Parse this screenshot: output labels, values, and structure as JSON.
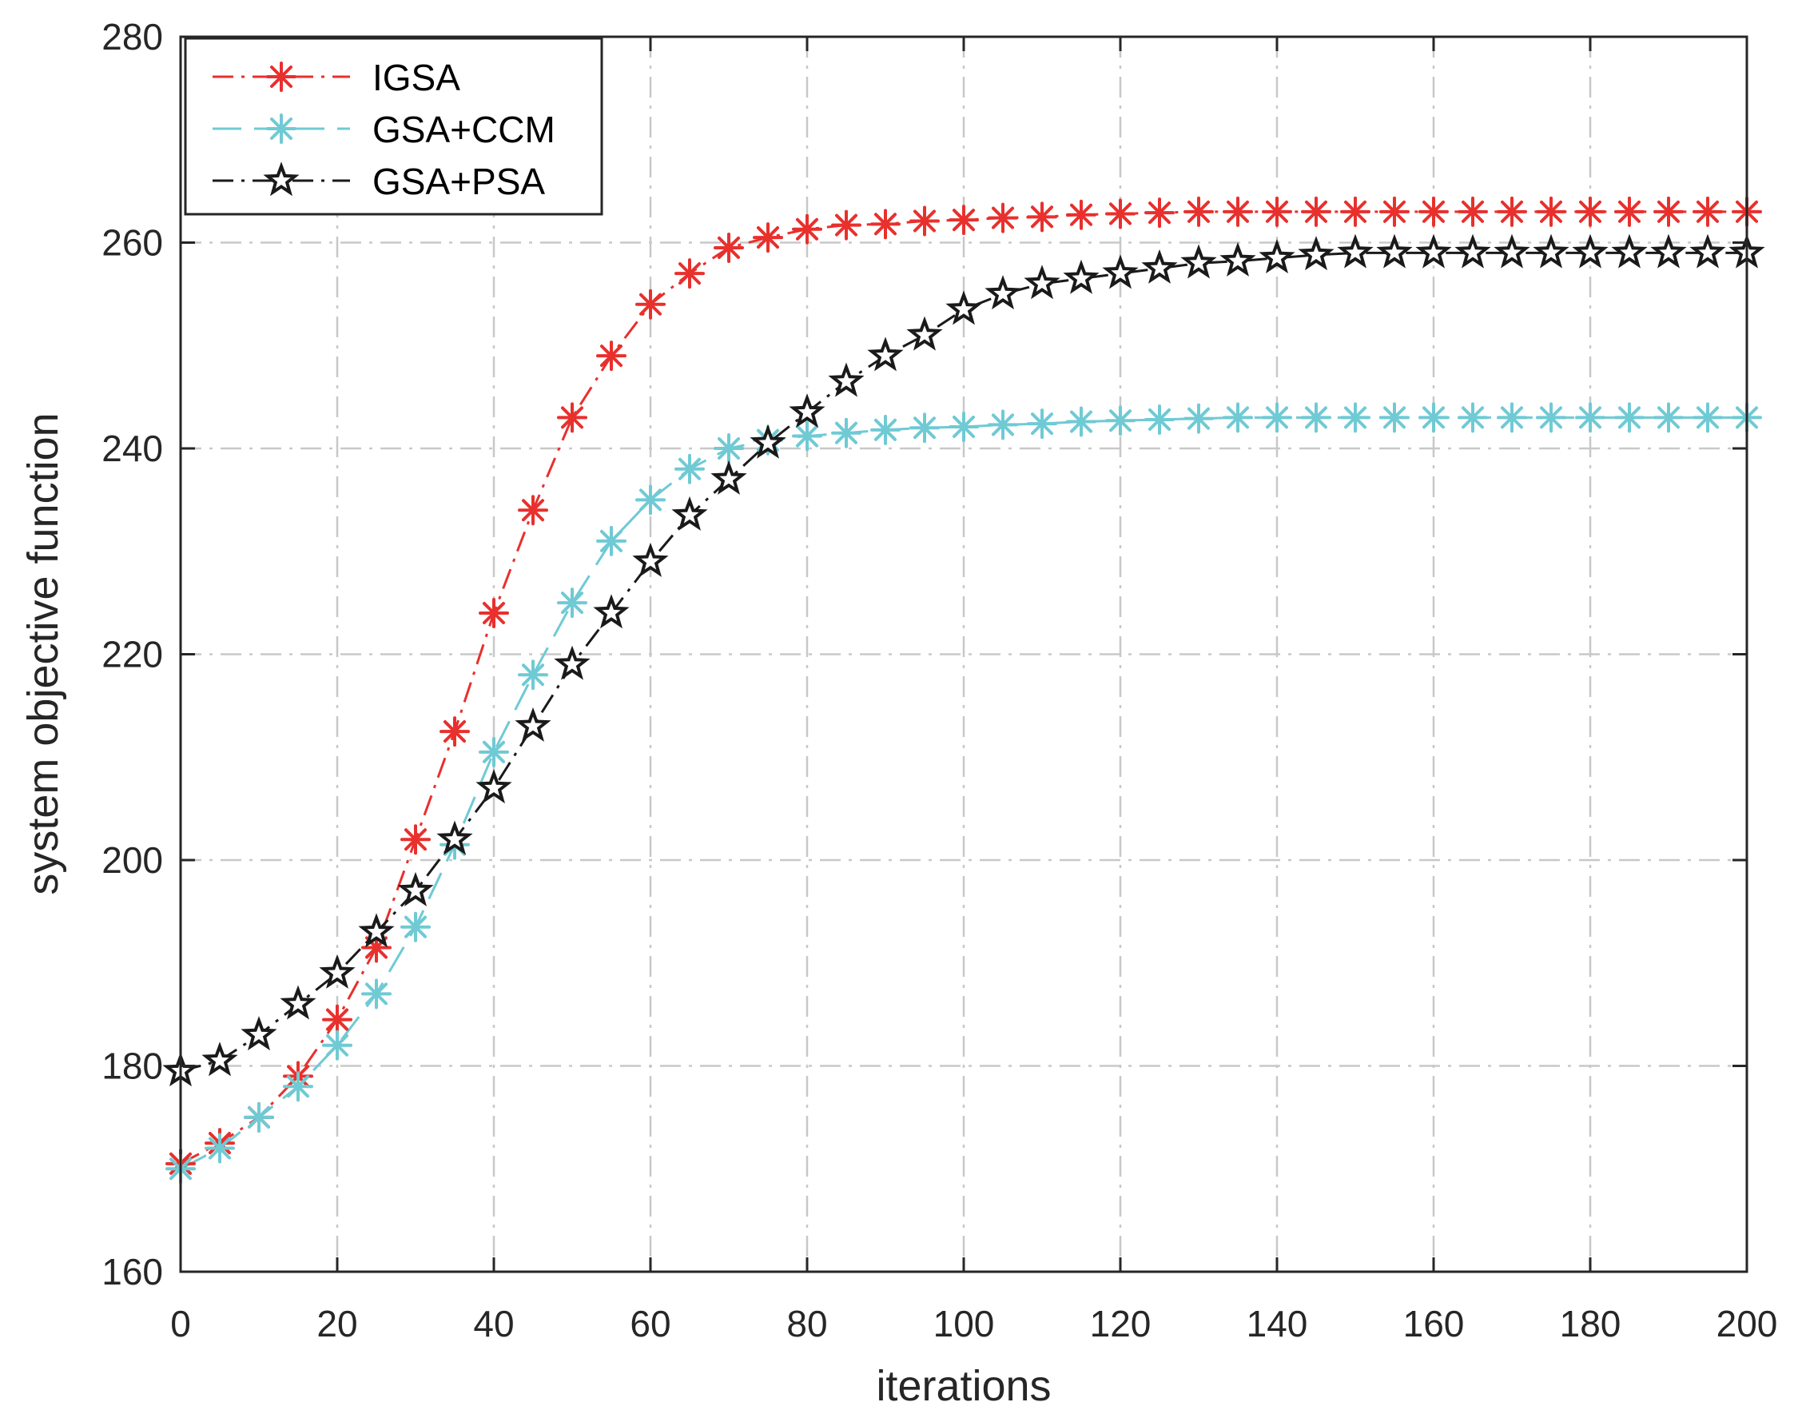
{
  "chart_data": {
    "type": "line",
    "xlabel": "iterations",
    "ylabel": "system objective function",
    "xlim": [
      0,
      200
    ],
    "ylim": [
      160,
      280
    ],
    "xticks": [
      0,
      20,
      40,
      60,
      80,
      100,
      120,
      140,
      160,
      180,
      200
    ],
    "yticks": [
      160,
      180,
      200,
      220,
      240,
      260,
      280
    ],
    "grid": true,
    "legend_position": "top-left",
    "x": [
      0,
      5,
      10,
      15,
      20,
      25,
      30,
      35,
      40,
      45,
      50,
      55,
      60,
      65,
      70,
      75,
      80,
      85,
      90,
      95,
      100,
      105,
      110,
      115,
      120,
      125,
      130,
      135,
      140,
      145,
      150,
      155,
      160,
      165,
      170,
      175,
      180,
      185,
      190,
      195,
      200
    ],
    "series": [
      {
        "name": "IGSA",
        "color": "#e8302d",
        "marker": "asterisk",
        "dash": "dashdot",
        "values": [
          170.5,
          172.5,
          175,
          179,
          184.5,
          191.5,
          202,
          212.5,
          224,
          234,
          243,
          249,
          254,
          257,
          259.5,
          260.5,
          261.3,
          261.7,
          261.8,
          262.1,
          262.2,
          262.4,
          262.5,
          262.7,
          262.8,
          262.9,
          263,
          263,
          263,
          263,
          263,
          263,
          263,
          263,
          263,
          263,
          263,
          263,
          263,
          263,
          263
        ]
      },
      {
        "name": "GSA+CCM",
        "color": "#6fcad4",
        "marker": "asterisk",
        "dash": "dashed",
        "values": [
          170,
          172,
          175,
          178,
          182,
          187,
          193.5,
          201.5,
          210.5,
          218,
          225,
          231,
          235,
          238,
          240,
          240.8,
          241.2,
          241.5,
          241.8,
          242,
          242.1,
          242.3,
          242.4,
          242.6,
          242.7,
          242.8,
          242.9,
          243,
          243,
          243,
          243,
          243,
          243,
          243,
          243,
          243,
          243,
          243,
          243,
          243,
          243
        ]
      },
      {
        "name": "GSA+PSA",
        "color": "#1a1a1a",
        "marker": "star",
        "dash": "dashdot",
        "values": [
          179.5,
          180.5,
          183,
          186,
          189,
          193,
          197,
          202,
          207,
          213,
          219,
          224,
          229,
          233.5,
          237,
          240.5,
          243.5,
          246.5,
          249,
          251,
          253.5,
          255,
          256,
          256.5,
          257,
          257.5,
          258,
          258.2,
          258.5,
          258.8,
          259,
          259,
          259,
          259,
          259,
          259,
          259,
          259,
          259,
          259,
          259
        ]
      }
    ]
  }
}
